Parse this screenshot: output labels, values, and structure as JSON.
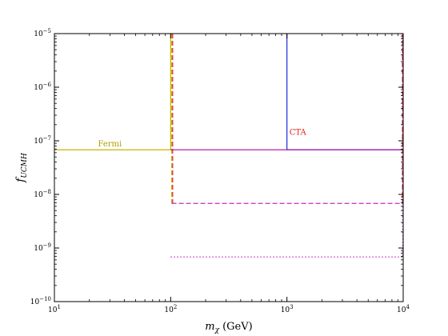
{
  "chart_data": {
    "type": "line",
    "title": "",
    "xlabel_main": "m",
    "xlabel_sub": "χ",
    "xlabel_unit": "(GeV)",
    "ylabel_main": "f",
    "ylabel_sub": "UCMH",
    "xscale": "log",
    "yscale": "log",
    "xlim": [
      10,
      10000
    ],
    "ylim": [
      1e-10,
      1e-05
    ],
    "grid": false,
    "legend": "none",
    "x_ticks": [
      {
        "value": 10,
        "base": "10",
        "exp": "1"
      },
      {
        "value": 100,
        "base": "10",
        "exp": "2"
      },
      {
        "value": 1000,
        "base": "10",
        "exp": "3"
      },
      {
        "value": 10000,
        "base": "10",
        "exp": "4"
      }
    ],
    "y_ticks": [
      {
        "value": 1e-10,
        "base": "10",
        "exp": "−10"
      },
      {
        "value": 1e-09,
        "base": "10",
        "exp": "−9"
      },
      {
        "value": 1e-08,
        "base": "10",
        "exp": "−8"
      },
      {
        "value": 1e-07,
        "base": "10",
        "exp": "−7"
      },
      {
        "value": 1e-06,
        "base": "10",
        "exp": "−6"
      },
      {
        "value": 1e-05,
        "base": "10",
        "exp": "−5"
      }
    ],
    "series": [
      {
        "id": "fermi-solid",
        "color": "#c8b400",
        "style": "solid",
        "points": [
          [
            10,
            6.8e-08
          ],
          [
            100,
            6.8e-08
          ],
          [
            100,
            1e-05
          ]
        ]
      },
      {
        "id": "fermi-dashed",
        "color": "#c8b400",
        "style": "dashed",
        "points": [
          [
            102,
            1e-05
          ],
          [
            102,
            6.8e-09
          ]
        ]
      },
      {
        "id": "red-dashed",
        "color": "#e02020",
        "style": "dashed",
        "points": [
          [
            104,
            1e-05
          ],
          [
            104,
            6.8e-09
          ]
        ]
      },
      {
        "id": "cta-blue",
        "color": "#1c2bd6",
        "style": "solid",
        "points": [
          [
            1000,
            1e-05
          ],
          [
            1000,
            6.8e-08
          ],
          [
            10000,
            6.8e-08
          ]
        ]
      },
      {
        "id": "magenta-solid",
        "color": "#b020b0",
        "style": "solid",
        "points": [
          [
            100,
            6.8e-08
          ],
          [
            10000,
            6.8e-08
          ]
        ]
      },
      {
        "id": "magenta-dashed",
        "color": "#c030c0",
        "style": "dashed",
        "points": [
          [
            102,
            6.8e-09
          ],
          [
            10000,
            6.8e-09
          ]
        ]
      },
      {
        "id": "magenta-dotted",
        "color": "#c030c0",
        "style": "dotted",
        "points": [
          [
            100,
            6.8e-10
          ],
          [
            10000,
            6.8e-10
          ]
        ]
      },
      {
        "id": "right-edge-red",
        "color": "#e02020",
        "style": "dashed",
        "points": [
          [
            9850,
            1e-05
          ],
          [
            9850,
            6.8e-09
          ]
        ]
      },
      {
        "id": "right-edge-magenta",
        "color": "#c030c0",
        "style": "dotted",
        "points": [
          [
            9900,
            1e-05
          ],
          [
            9900,
            6.8e-10
          ]
        ]
      }
    ],
    "annotations": [
      {
        "id": "fermi",
        "text": "Fermi",
        "x": 30,
        "y": 7.8e-08,
        "color": "#b0a000",
        "anchor": "middle"
      },
      {
        "id": "cta",
        "text": "CTA",
        "x": 1050,
        "y": 1.3e-07,
        "color": "#e02020",
        "anchor": "start"
      }
    ]
  }
}
